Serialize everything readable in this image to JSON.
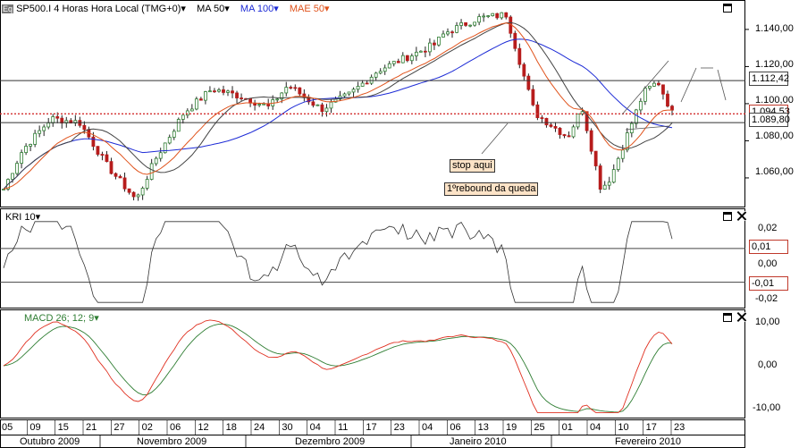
{
  "header": {
    "logo": "Eq",
    "symbol": "SP500.I 4 Horas Hora Local (TMG+0)",
    "ma1": "MA 50",
    "ma2": "MA 100",
    "mae": "MAE 50",
    "colors": {
      "ma1": "#444444",
      "ma2": "#1d2bd6",
      "mae": "#e0531c"
    }
  },
  "price_axis": [
    "1.140,00",
    "1.120,00",
    "1.100,00",
    "1.080,00",
    "1.060,00"
  ],
  "badges": {
    "price_top": "1.112,42",
    "price_now": "1.094,53",
    "price_low": "1.089,80",
    "kri_top": "0,01",
    "kri_low": "-0,01"
  },
  "annotations": {
    "stop": "stop aqui",
    "rebound": "1ºrebound da queda"
  },
  "kri": {
    "label": "KRI 10",
    "axis": [
      "0,02",
      "0,01",
      "0,00",
      "-0,01",
      "-0,02"
    ]
  },
  "macd": {
    "label": "MACD 26; 12; 9",
    "axis": [
      "10,00",
      "0,00",
      "-10,00"
    ]
  },
  "date_axis": {
    "days": [
      "05",
      "09",
      "15",
      "21",
      "27",
      "02",
      "06",
      "12",
      "18",
      "24",
      "30",
      "04",
      "11",
      "17",
      "23",
      "04",
      "06",
      "13",
      "19",
      "25",
      "01",
      "04",
      "10",
      "17",
      "23"
    ],
    "months": [
      "Outubro 2009",
      "Novembro 2009",
      "Dezembro 2009",
      "Janeiro 2010",
      "Fevereiro 2010"
    ]
  },
  "chart_data": {
    "type": "line",
    "title": "SP500.I 4 Horas Hora Local (TMG+0)",
    "x_range": [
      "2009-10-05",
      "2010-02-23"
    ],
    "ylim": [
      1046,
      1152
    ],
    "grid": false,
    "legend": "top-left",
    "price_keypoints": [
      {
        "x": "2009-10-05",
        "y": 1054
      },
      {
        "x": "2009-10-09",
        "y": 1075
      },
      {
        "x": "2009-10-15",
        "y": 1092
      },
      {
        "x": "2009-10-21",
        "y": 1090
      },
      {
        "x": "2009-10-27",
        "y": 1066
      },
      {
        "x": "2009-11-02",
        "y": 1048
      },
      {
        "x": "2009-11-06",
        "y": 1070
      },
      {
        "x": "2009-11-12",
        "y": 1095
      },
      {
        "x": "2009-11-18",
        "y": 1108
      },
      {
        "x": "2009-11-24",
        "y": 1104
      },
      {
        "x": "2009-11-30",
        "y": 1098
      },
      {
        "x": "2009-12-04",
        "y": 1110
      },
      {
        "x": "2009-12-11",
        "y": 1097
      },
      {
        "x": "2009-12-17",
        "y": 1105
      },
      {
        "x": "2009-12-23",
        "y": 1118
      },
      {
        "x": "2010-01-04",
        "y": 1132
      },
      {
        "x": "2010-01-06",
        "y": 1138
      },
      {
        "x": "2010-01-13",
        "y": 1146
      },
      {
        "x": "2010-01-19",
        "y": 1148
      },
      {
        "x": "2010-01-25",
        "y": 1095
      },
      {
        "x": "2010-02-01",
        "y": 1082
      },
      {
        "x": "2010-02-04",
        "y": 1098
      },
      {
        "x": "2010-02-08",
        "y": 1054
      },
      {
        "x": "2010-02-10",
        "y": 1060
      },
      {
        "x": "2010-02-17",
        "y": 1106
      },
      {
        "x": "2010-02-20",
        "y": 1112
      },
      {
        "x": "2010-02-23",
        "y": 1095
      }
    ],
    "levels": [
      1112.42,
      1094.53,
      1089.8
    ],
    "kri": {
      "ylim": [
        -0.024,
        0.028
      ],
      "levels": [
        0.01,
        -0.01
      ]
    },
    "macd": {
      "ylim": [
        -12.5,
        12.5
      ],
      "series_colors": [
        "#e03020",
        "#2e7d32"
      ]
    }
  }
}
